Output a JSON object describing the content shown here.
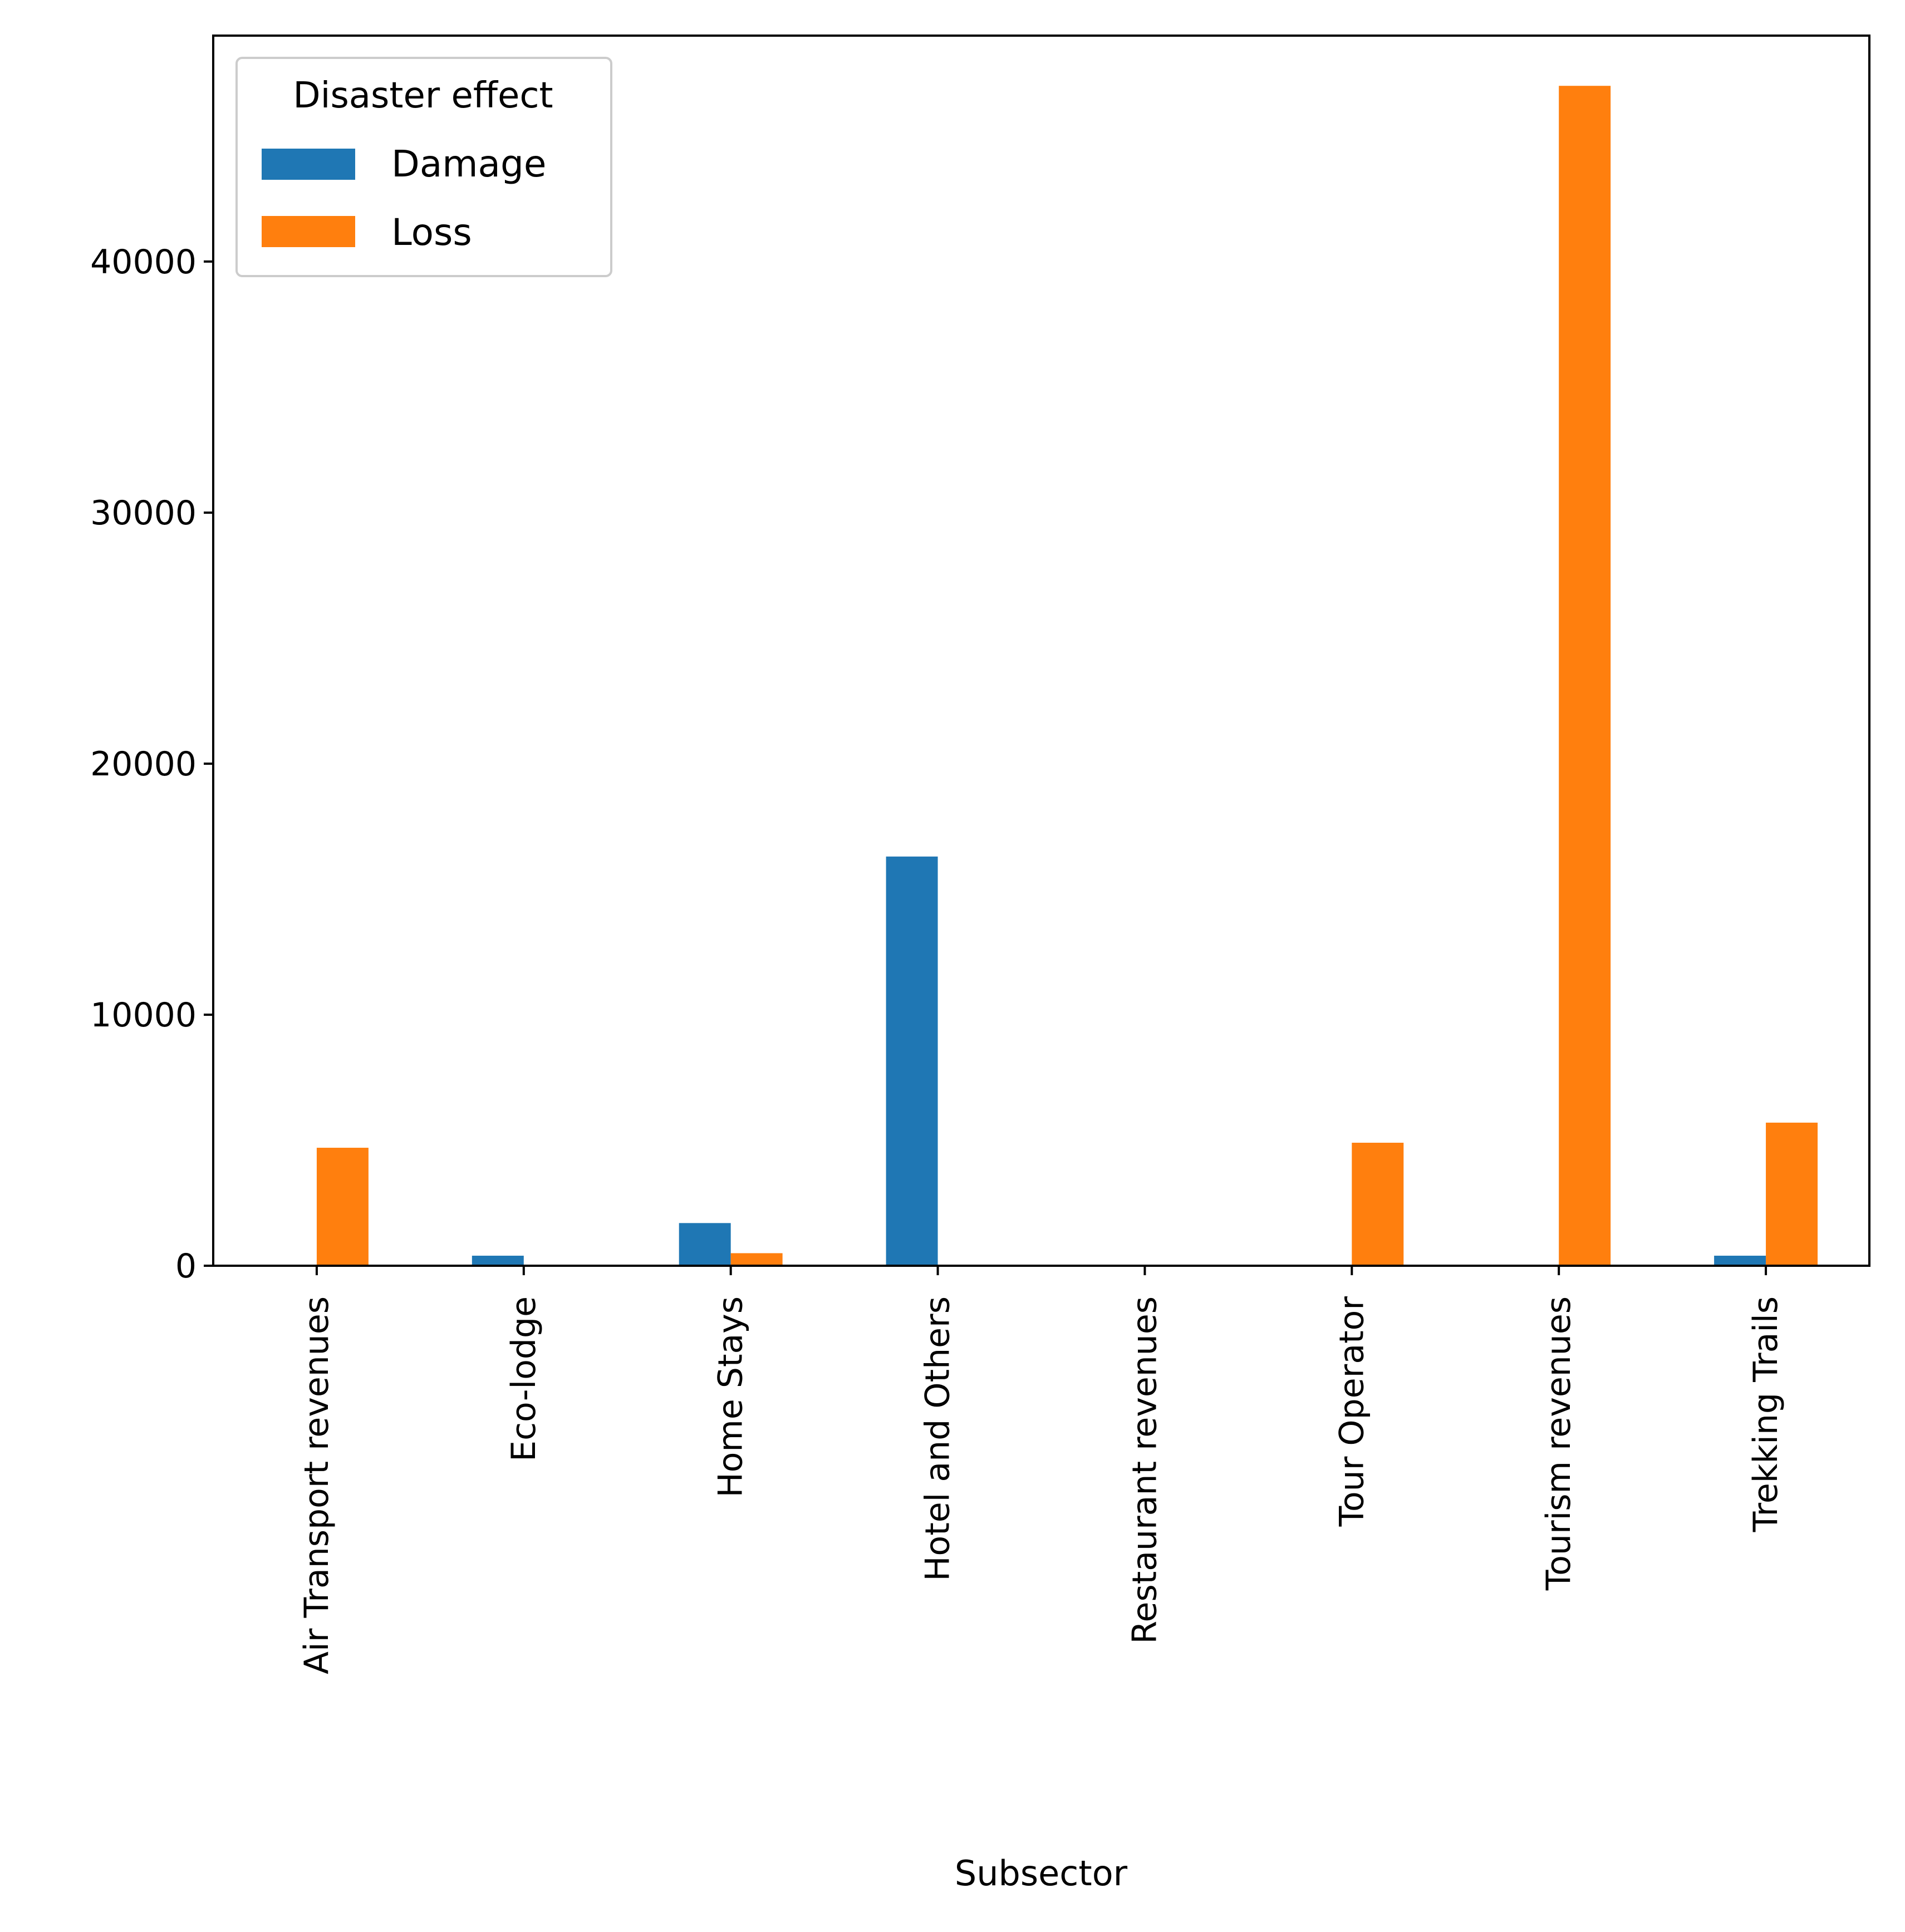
{
  "chart_data": {
    "type": "bar",
    "title": "",
    "xlabel": "Subsector",
    "ylabel": "",
    "categories": [
      "Air Transport revenues",
      "Eco-lodge",
      "Home Stays",
      "Hotel and Others",
      "Restaurant revenues",
      "Tour Operator",
      "Tourism revenues",
      "Trekking Trails"
    ],
    "series": [
      {
        "name": "Damage",
        "color": "#1f77b4",
        "values": [
          0,
          400,
          1700,
          16300,
          0,
          0,
          0,
          400
        ]
      },
      {
        "name": "Loss",
        "color": "#ff7f0e",
        "values": [
          4700,
          0,
          500,
          0,
          0,
          4900,
          47000,
          5700
        ]
      }
    ],
    "ylim": [
      0,
      49000
    ],
    "yticks": [
      0,
      10000,
      20000,
      30000,
      40000
    ],
    "grid": false,
    "legend": {
      "title": "Disaster effect",
      "placement": "top-left"
    }
  }
}
